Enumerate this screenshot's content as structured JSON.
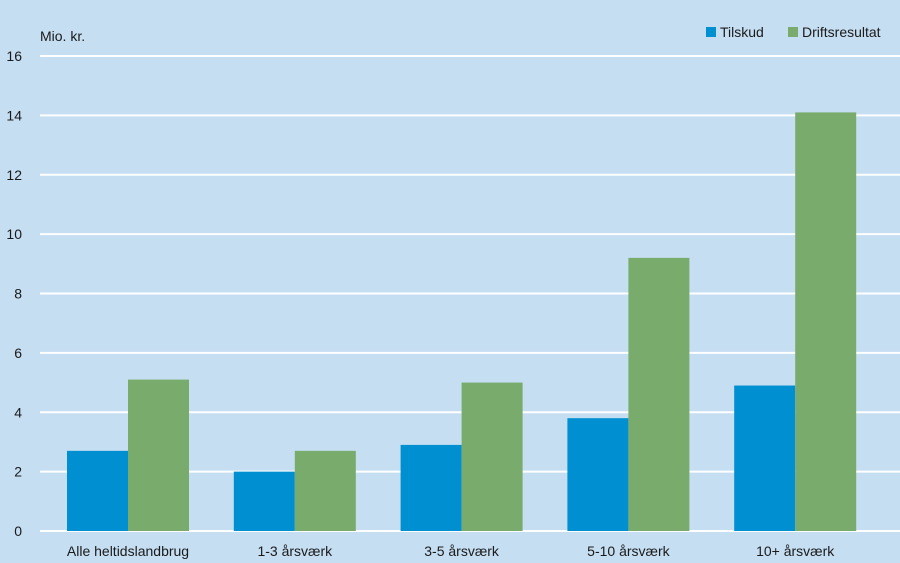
{
  "chart_data": {
    "type": "bar",
    "ylabel": "Mio. kr.",
    "ylim": [
      0,
      16
    ],
    "yticks": [
      "0",
      "2",
      "4",
      "6",
      "8",
      "10",
      "12",
      "14",
      "16"
    ],
    "categories": [
      "Alle heltidslandbrug",
      "1-3 årsværk",
      "3-5 årsværk",
      "5-10 årsværk",
      "10+ årsværk"
    ],
    "series": [
      {
        "name": "Tilskud",
        "color": "#008fd0",
        "values": [
          2.7,
          2.0,
          2.9,
          3.8,
          4.9
        ]
      },
      {
        "name": "Driftsresultat",
        "color": "#79ab6c",
        "values": [
          5.1,
          2.7,
          5.0,
          9.2,
          14.1
        ]
      }
    ],
    "grid": true,
    "legend_position": "top-right",
    "colors": {
      "background": "#c5def2",
      "gridline": "#ffffff"
    }
  }
}
